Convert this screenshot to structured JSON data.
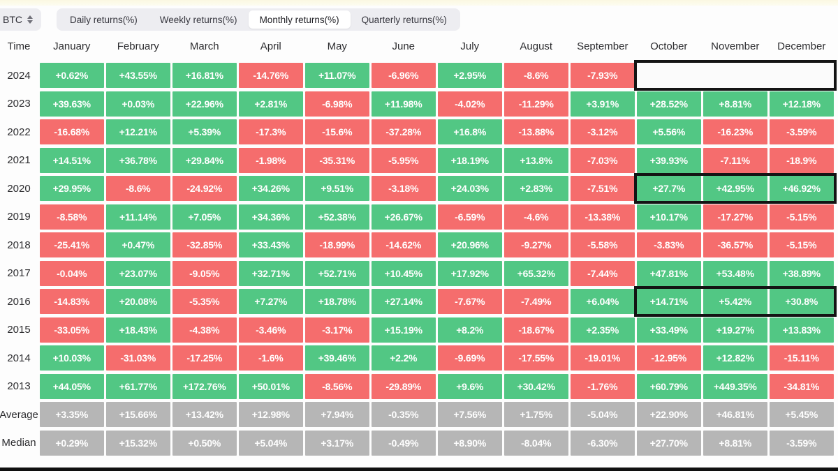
{
  "toolbar": {
    "symbol": "BTC",
    "symbol_icon": "sort-updown-icon",
    "tabs": [
      {
        "id": "daily-returns",
        "label": "Daily returns(%)",
        "active": false
      },
      {
        "id": "weekly-returns",
        "label": "Weekly returns(%)",
        "active": false
      },
      {
        "id": "monthly-returns",
        "label": "Monthly returns(%)",
        "active": true
      },
      {
        "id": "quarterly-returns",
        "label": "Quarterly returns(%)",
        "active": false
      }
    ]
  },
  "colors": {
    "positive": "#52c784",
    "negative": "#f56d6d",
    "summary": "#b6b6b6",
    "highlight_border": "#141414"
  },
  "table": {
    "header": [
      "Time",
      "January",
      "February",
      "March",
      "April",
      "May",
      "June",
      "July",
      "August",
      "September",
      "October",
      "November",
      "December"
    ],
    "rows": [
      {
        "label": "2024",
        "kind": "year",
        "highlight": "box",
        "values": [
          "+0.62%",
          "+43.55%",
          "+16.81%",
          "-14.76%",
          "+11.07%",
          "-6.96%",
          "+2.95%",
          "-8.6%",
          "-7.93%",
          null,
          null,
          null
        ]
      },
      {
        "label": "2023",
        "kind": "year",
        "values": [
          "+39.63%",
          "+0.03%",
          "+22.96%",
          "+2.81%",
          "-6.98%",
          "+11.98%",
          "-4.02%",
          "-11.29%",
          "+3.91%",
          "+28.52%",
          "+8.81%",
          "+12.18%"
        ]
      },
      {
        "label": "2022",
        "kind": "year",
        "values": [
          "-16.68%",
          "+12.21%",
          "+5.39%",
          "-17.3%",
          "-15.6%",
          "-37.28%",
          "+16.8%",
          "-13.88%",
          "-3.12%",
          "+5.56%",
          "-16.23%",
          "-3.59%"
        ]
      },
      {
        "label": "2021",
        "kind": "year",
        "values": [
          "+14.51%",
          "+36.78%",
          "+29.84%",
          "-1.98%",
          "-35.31%",
          "-5.95%",
          "+18.19%",
          "+13.8%",
          "-7.03%",
          "+39.93%",
          "-7.11%",
          "-18.9%"
        ]
      },
      {
        "label": "2020",
        "kind": "year",
        "highlight": "ring",
        "values": [
          "+29.95%",
          "-8.6%",
          "-24.92%",
          "+34.26%",
          "+9.51%",
          "-3.18%",
          "+24.03%",
          "+2.83%",
          "-7.51%",
          "+27.7%",
          "+42.95%",
          "+46.92%"
        ]
      },
      {
        "label": "2019",
        "kind": "year",
        "values": [
          "-8.58%",
          "+11.14%",
          "+7.05%",
          "+34.36%",
          "+52.38%",
          "+26.67%",
          "-6.59%",
          "-4.6%",
          "-13.38%",
          "+10.17%",
          "-17.27%",
          "-5.15%"
        ]
      },
      {
        "label": "2018",
        "kind": "year",
        "values": [
          "-25.41%",
          "+0.47%",
          "-32.85%",
          "+33.43%",
          "-18.99%",
          "-14.62%",
          "+20.96%",
          "-9.27%",
          "-5.58%",
          "-3.83%",
          "-36.57%",
          "-5.15%"
        ]
      },
      {
        "label": "2017",
        "kind": "year",
        "values": [
          "-0.04%",
          "+23.07%",
          "-9.05%",
          "+32.71%",
          "+52.71%",
          "+10.45%",
          "+17.92%",
          "+65.32%",
          "-7.44%",
          "+47.81%",
          "+53.48%",
          "+38.89%"
        ]
      },
      {
        "label": "2016",
        "kind": "year",
        "highlight": "ring",
        "values": [
          "-14.83%",
          "+20.08%",
          "-5.35%",
          "+7.27%",
          "+18.78%",
          "+27.14%",
          "-7.67%",
          "-7.49%",
          "+6.04%",
          "+14.71%",
          "+5.42%",
          "+30.8%"
        ]
      },
      {
        "label": "2015",
        "kind": "year",
        "values": [
          "-33.05%",
          "+18.43%",
          "-4.38%",
          "-3.46%",
          "-3.17%",
          "+15.19%",
          "+8.2%",
          "-18.67%",
          "+2.35%",
          "+33.49%",
          "+19.27%",
          "+13.83%"
        ]
      },
      {
        "label": "2014",
        "kind": "year",
        "values": [
          "+10.03%",
          "-31.03%",
          "-17.25%",
          "-1.6%",
          "+39.46%",
          "+2.2%",
          "-9.69%",
          "-17.55%",
          "-19.01%",
          "-12.95%",
          "+12.82%",
          "-15.11%"
        ]
      },
      {
        "label": "2013",
        "kind": "year",
        "values": [
          "+44.05%",
          "+61.77%",
          "+172.76%",
          "+50.01%",
          "-8.56%",
          "-29.89%",
          "+9.6%",
          "+30.42%",
          "-1.76%",
          "+60.79%",
          "+449.35%",
          "-34.81%"
        ]
      },
      {
        "label": "Average",
        "kind": "summary",
        "values": [
          "+3.35%",
          "+15.66%",
          "+13.42%",
          "+12.98%",
          "+7.94%",
          "-0.35%",
          "+7.56%",
          "+1.75%",
          "-5.04%",
          "+22.90%",
          "+46.81%",
          "+5.45%"
        ]
      },
      {
        "label": "Median",
        "kind": "summary",
        "values": [
          "+0.29%",
          "+15.32%",
          "+0.50%",
          "+5.04%",
          "+3.17%",
          "-0.49%",
          "+8.90%",
          "-8.04%",
          "-6.30%",
          "+27.70%",
          "+8.81%",
          "-3.59%"
        ]
      }
    ]
  }
}
